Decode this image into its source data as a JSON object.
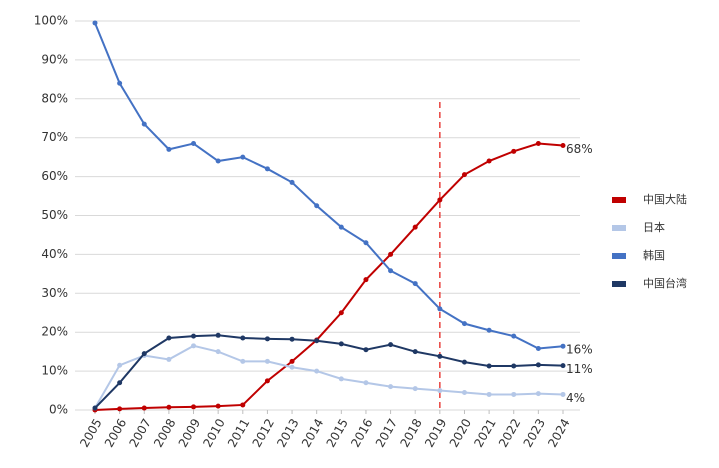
{
  "chart_data": {
    "type": "line",
    "x": [
      2005,
      2006,
      2007,
      2008,
      2009,
      2010,
      2011,
      2012,
      2013,
      2014,
      2015,
      2016,
      2017,
      2018,
      2019,
      2020,
      2021,
      2022,
      2023,
      2024
    ],
    "xlim": [
      2005,
      2024
    ],
    "xticks": [
      2005,
      2006,
      2007,
      2008,
      2009,
      2010,
      2011,
      2012,
      2013,
      2014,
      2015,
      2016,
      2017,
      2018,
      2019,
      2020,
      2021,
      2022,
      2023,
      2024
    ],
    "ylim": [
      0,
      100
    ],
    "yticks": [
      {
        "value": 0,
        "label": "0%"
      },
      {
        "value": 10,
        "label": "10%"
      },
      {
        "value": 20,
        "label": "20%"
      },
      {
        "value": 30,
        "label": "30%"
      },
      {
        "value": 40,
        "label": "40%"
      },
      {
        "value": 50,
        "label": "50%"
      },
      {
        "value": 60,
        "label": "60%"
      },
      {
        "value": 70,
        "label": "70%"
      },
      {
        "value": 80,
        "label": "80%"
      },
      {
        "value": 90,
        "label": "90%"
      },
      {
        "value": 100,
        "label": "100%"
      }
    ],
    "grid": true,
    "legend": "right",
    "reference_line": {
      "x": 2019,
      "color": "#e8413c",
      "dashed": true
    },
    "series": [
      {
        "name": "中国大陆",
        "color": "#c00000",
        "values": [
          0,
          0.3,
          0.5,
          0.7,
          0.8,
          1,
          1.3,
          7.5,
          12.5,
          18,
          25,
          33.5,
          40,
          47,
          54,
          60.5,
          64,
          66.5,
          68.5,
          68
        ],
        "value_labels": [
          null,
          null,
          null,
          null,
          null,
          null,
          null,
          null,
          null,
          null,
          null,
          null,
          null,
          null,
          null,
          null,
          null,
          null,
          null,
          "68%"
        ]
      },
      {
        "name": "日本",
        "color": "#b4c7e7",
        "values": [
          0.5,
          11.5,
          14,
          13,
          16.5,
          15,
          12.5,
          12.5,
          11,
          10,
          8,
          7,
          6,
          5.5,
          5,
          4.5,
          4,
          4,
          4.2,
          4
        ],
        "value_labels": [
          null,
          null,
          null,
          null,
          null,
          null,
          null,
          null,
          null,
          null,
          null,
          null,
          null,
          null,
          null,
          null,
          null,
          null,
          null,
          "4%"
        ]
      },
      {
        "name": "韩国",
        "color": "#4472c4",
        "values": [
          99.5,
          84,
          73.5,
          67,
          68.5,
          64,
          65,
          62,
          58.5,
          52.5,
          47,
          43,
          35.8,
          32.5,
          26,
          22.2,
          20.5,
          19,
          15.8,
          16.4
        ],
        "value_labels": [
          null,
          null,
          null,
          null,
          null,
          null,
          null,
          null,
          null,
          null,
          null,
          null,
          null,
          null,
          null,
          null,
          null,
          null,
          null,
          "16%"
        ]
      },
      {
        "name": "中国台湾",
        "color": "#1f3864",
        "values": [
          0.5,
          7,
          14.5,
          18.5,
          19,
          19.2,
          18.5,
          18.3,
          18.2,
          17.8,
          17,
          15.5,
          16.8,
          15,
          13.8,
          12.3,
          11.3,
          11.3,
          11.6,
          11.4
        ],
        "value_labels": [
          null,
          null,
          null,
          null,
          null,
          null,
          null,
          null,
          null,
          null,
          null,
          null,
          null,
          null,
          null,
          null,
          null,
          null,
          null,
          "11%"
        ]
      }
    ]
  }
}
